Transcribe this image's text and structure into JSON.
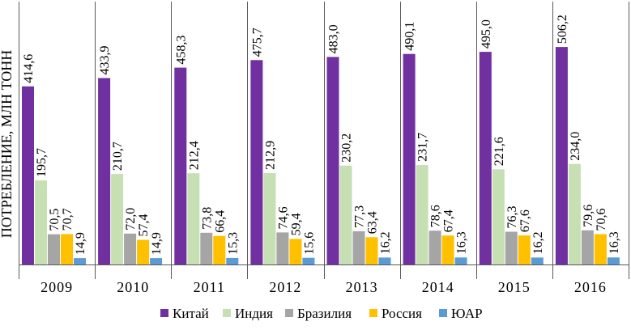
{
  "chart_data": {
    "type": "bar",
    "title": "",
    "xlabel": "",
    "ylabel": "ПОТРЕБЛЕНИЕ, МЛН ТОНН",
    "ylim": [
      0,
      540
    ],
    "grid": false,
    "legend_position": "bottom",
    "categories": [
      "2009",
      "2010",
      "2011",
      "2012",
      "2013",
      "2014",
      "2015",
      "2016"
    ],
    "series": [
      {
        "name": "Китай",
        "color": "#7030A0",
        "values": [
          414.6,
          433.9,
          458.3,
          475.7,
          483.0,
          490.1,
          495.0,
          506.2
        ],
        "labels": [
          "414,6",
          "433,9",
          "458,3",
          "475,7",
          "483,0",
          "490,1",
          "495,0",
          "506,2"
        ]
      },
      {
        "name": "Индия",
        "color": "#C6E0B4",
        "values": [
          195.7,
          210.7,
          212.4,
          212.9,
          230.2,
          231.7,
          221.6,
          234.0
        ],
        "labels": [
          "195,7",
          "210,7",
          "212,4",
          "212,9",
          "230,2",
          "231,7",
          "221,6",
          "234,0"
        ]
      },
      {
        "name": "Бразилия",
        "color": "#A5A5A5",
        "values": [
          70.5,
          72.0,
          73.8,
          74.6,
          77.3,
          78.6,
          76.3,
          79.6
        ],
        "labels": [
          "70,5",
          "72,0",
          "73,8",
          "74,6",
          "77,3",
          "78,6",
          "76,3",
          "79,6"
        ]
      },
      {
        "name": "Россия",
        "color": "#FFC000",
        "values": [
          70.7,
          57.4,
          66.4,
          59.4,
          63.4,
          67.4,
          67.6,
          70.6
        ],
        "labels": [
          "70,7",
          "57,4",
          "66,4",
          "59,4",
          "63,4",
          "67,4",
          "67,6",
          "70,6"
        ]
      },
      {
        "name": "ЮАР",
        "color": "#5B9BD5",
        "values": [
          14.9,
          14.9,
          15.3,
          15.6,
          16.2,
          16.3,
          16.2,
          16.3
        ],
        "labels": [
          "14,9",
          "14,9",
          "15,3",
          "15,6",
          "16,2",
          "16,3",
          "16,2",
          "16,3"
        ]
      }
    ]
  }
}
